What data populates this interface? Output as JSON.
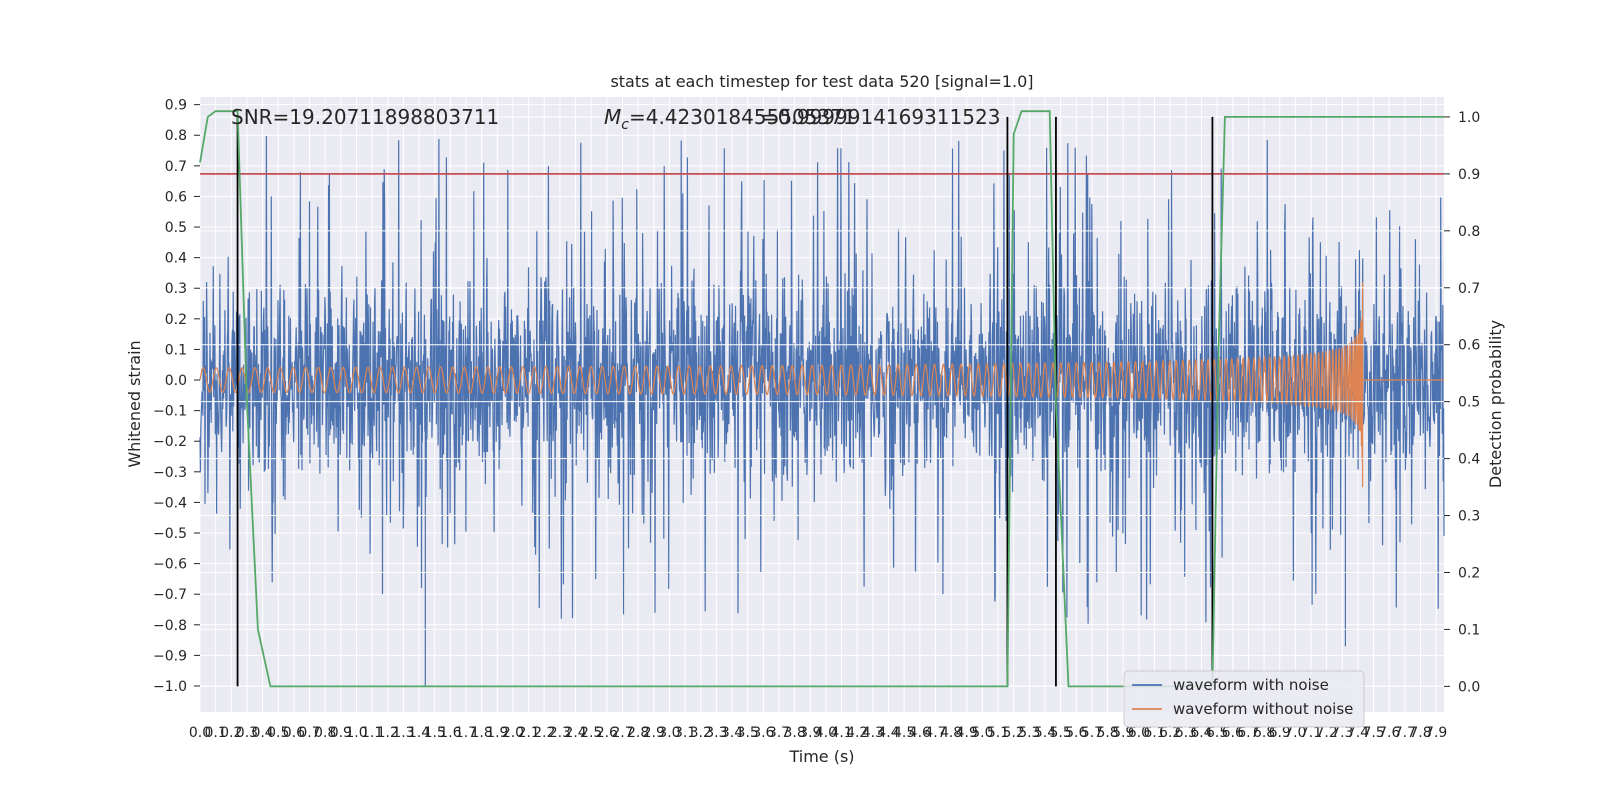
{
  "chart_data": {
    "type": "line",
    "title": "stats at each timestep for test data 520 [signal=1.0]",
    "xlabel": "Time (s)",
    "ylabel": "Whitened strain",
    "y2label": "Detection probability",
    "xlim": [
      0.0,
      7.95
    ],
    "ylim": [
      -1.085,
      0.925
    ],
    "y2lim": [
      -0.045,
      1.035
    ],
    "x_ticks": [
      0.0,
      0.1,
      0.2,
      0.3,
      0.4,
      0.5,
      0.6,
      0.7,
      0.8,
      0.9,
      1.0,
      1.1,
      1.2,
      1.3,
      1.4,
      1.5,
      1.6,
      1.7,
      1.8,
      1.9,
      2.0,
      2.1,
      2.2,
      2.3,
      2.4,
      2.5,
      2.6,
      2.7,
      2.8,
      2.9,
      3.0,
      3.1,
      3.2,
      3.3,
      3.4,
      3.5,
      3.6,
      3.7,
      3.8,
      3.9,
      4.0,
      4.1,
      4.2,
      4.3,
      4.4,
      4.5,
      4.6,
      4.7,
      4.8,
      4.9,
      5.0,
      5.1,
      5.2,
      5.3,
      5.4,
      5.5,
      5.6,
      5.7,
      5.8,
      5.9,
      6.0,
      6.1,
      6.2,
      6.3,
      6.4,
      6.5,
      6.6,
      6.7,
      6.8,
      6.9,
      7.0,
      7.1,
      7.2,
      7.3,
      7.4,
      7.5,
      7.6,
      7.7,
      7.8,
      7.9
    ],
    "y_ticks": [
      0.9,
      0.8,
      0.7,
      0.6,
      0.5,
      0.4,
      0.3,
      0.2,
      0.1,
      0.0,
      -0.1,
      -0.2,
      -0.3,
      -0.4,
      -0.5,
      -0.6,
      -0.7,
      -0.8,
      -0.9,
      -1.0
    ],
    "y2_ticks": [
      1.0,
      0.9,
      0.8,
      0.7,
      0.6,
      0.5,
      0.4,
      0.3,
      0.2,
      0.1,
      0.0
    ],
    "annotations": {
      "snr": "SNR=19.20711898803711",
      "mc_prefix": "M",
      "mc_sub": "c",
      "mc_value": "=4.423018455505371",
      "overlap": "=0.9999914169311523"
    },
    "threshold": {
      "value": 0.9,
      "axis": "y2",
      "color": "#c44e52"
    },
    "vertical_lines": [
      0.24,
      5.16,
      5.47,
      6.47
    ],
    "detection_probability": {
      "name": "detection probability",
      "color": "#55a868",
      "x": [
        0.0,
        0.05,
        0.1,
        0.24,
        0.3,
        0.37,
        0.45,
        5.16,
        5.2,
        5.25,
        5.43,
        5.47,
        5.55,
        6.47,
        6.51,
        6.55,
        7.95
      ],
      "y": [
        0.92,
        1.0,
        1.01,
        1.01,
        0.5,
        0.1,
        0.0,
        0.0,
        0.97,
        1.01,
        1.01,
        0.5,
        0.0,
        0.0,
        0.6,
        1.0,
        1.0
      ]
    },
    "series": [
      {
        "name": "waveform with noise",
        "color": "#4c72b0",
        "typical_amplitude": 0.3,
        "peak_max": 0.85,
        "peak_min": -1.0
      },
      {
        "name": "waveform without noise",
        "color": "#dd8452",
        "start_amplitude": 0.04,
        "merger_time": 7.43,
        "merger_peak": 0.32,
        "merger_trough": -0.35
      }
    ],
    "legend": {
      "position": "lower-right",
      "entries": [
        "waveform with noise",
        "waveform without noise"
      ]
    }
  }
}
